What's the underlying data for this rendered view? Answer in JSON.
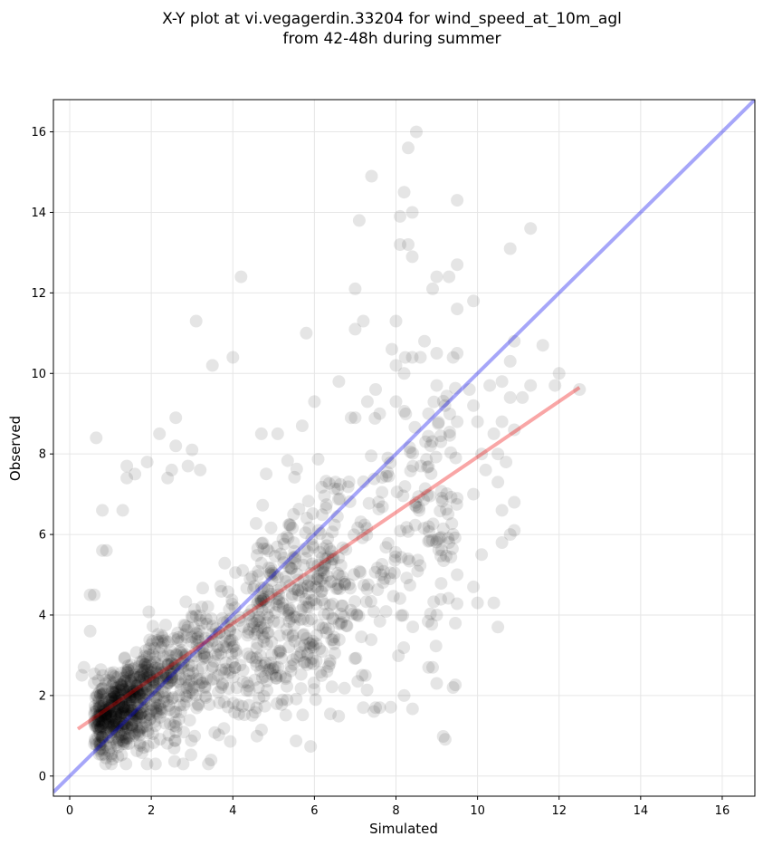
{
  "chart_data": {
    "type": "scatter",
    "title_line1": "X-Y plot at vi.vegagerdin.33204 for wind_speed_at_10m_agl",
    "title_line2": "from 42-48h during summer",
    "xlabel": "Simulated",
    "ylabel": "Observed",
    "xlim": [
      -0.4,
      16.8
    ],
    "ylim": [
      -0.5,
      16.8
    ],
    "xticks": [
      0,
      2,
      4,
      6,
      8,
      10,
      12,
      14,
      16
    ],
    "yticks": [
      0,
      2,
      4,
      6,
      8,
      10,
      12,
      14,
      16
    ],
    "grid": true,
    "colors": {
      "points": "#000000",
      "identity_line": "#0000ee",
      "fit_line": "#ee0000",
      "grid": "#e6e6e6"
    },
    "identity_line": {
      "x": [
        -0.4,
        16.8
      ],
      "y": [
        -0.4,
        16.8
      ]
    },
    "fit_line": {
      "x": [
        0.2,
        12.5
      ],
      "y": [
        1.17,
        9.65
      ]
    },
    "cloud": {
      "count": 1400,
      "description_note_free": true,
      "x_range": [
        0.3,
        12.8
      ],
      "y_range": [
        0.3,
        16.0
      ]
    },
    "points": [
      [
        8.5,
        16.0
      ],
      [
        8.3,
        15.6
      ],
      [
        7.4,
        14.9
      ],
      [
        8.2,
        14.5
      ],
      [
        9.5,
        14.3
      ],
      [
        8.4,
        14.0
      ],
      [
        8.1,
        13.9
      ],
      [
        7.1,
        13.8
      ],
      [
        11.3,
        13.6
      ],
      [
        8.1,
        13.2
      ],
      [
        8.3,
        13.2
      ],
      [
        10.8,
        13.1
      ],
      [
        8.4,
        12.9
      ],
      [
        9.5,
        12.7
      ],
      [
        9.3,
        12.4
      ],
      [
        9.0,
        12.4
      ],
      [
        4.2,
        12.4
      ],
      [
        8.9,
        12.1
      ],
      [
        7.0,
        12.1
      ],
      [
        9.9,
        11.8
      ],
      [
        9.5,
        11.6
      ],
      [
        3.1,
        11.3
      ],
      [
        7.2,
        11.3
      ],
      [
        8.0,
        11.3
      ],
      [
        7.0,
        11.1
      ],
      [
        5.8,
        11.0
      ],
      [
        10.9,
        10.8
      ],
      [
        11.6,
        10.7
      ],
      [
        8.7,
        10.8
      ],
      [
        7.9,
        10.6
      ],
      [
        8.4,
        10.4
      ],
      [
        8.6,
        10.4
      ],
      [
        3.5,
        10.2
      ],
      [
        4.0,
        10.4
      ],
      [
        8.0,
        10.2
      ],
      [
        9.0,
        10.5
      ],
      [
        10.8,
        10.3
      ],
      [
        9.5,
        10.5
      ],
      [
        8.2,
        10.0
      ],
      [
        12.0,
        10.0
      ],
      [
        10.6,
        9.8
      ],
      [
        10.3,
        9.7
      ],
      [
        11.3,
        9.7
      ],
      [
        11.9,
        9.7
      ],
      [
        12.5,
        9.6
      ],
      [
        9.9,
        9.2
      ],
      [
        9.0,
        9.7
      ],
      [
        7.5,
        9.6
      ],
      [
        6.0,
        9.3
      ],
      [
        10.8,
        9.4
      ],
      [
        11.1,
        9.4
      ],
      [
        10.0,
        8.8
      ],
      [
        9.5,
        8.8
      ],
      [
        10.6,
        8.8
      ],
      [
        10.9,
        8.6
      ],
      [
        10.4,
        8.5
      ],
      [
        2.2,
        8.5
      ],
      [
        2.6,
        8.9
      ],
      [
        0.65,
        8.4
      ],
      [
        4.7,
        8.5
      ],
      [
        5.1,
        8.5
      ],
      [
        2.6,
        8.2
      ],
      [
        3.0,
        8.1
      ],
      [
        7.0,
        8.9
      ],
      [
        5.7,
        8.7
      ],
      [
        10.5,
        8.0
      ],
      [
        10.1,
        8.0
      ],
      [
        10.2,
        7.6
      ],
      [
        10.7,
        7.8
      ],
      [
        10.5,
        7.3
      ],
      [
        10.6,
        6.6
      ],
      [
        9.9,
        7.0
      ],
      [
        10.9,
        6.8
      ],
      [
        10.8,
        6.0
      ],
      [
        10.9,
        6.1
      ],
      [
        10.6,
        5.8
      ],
      [
        10.1,
        5.5
      ],
      [
        9.5,
        6.9
      ],
      [
        9.3,
        5.8
      ],
      [
        9.5,
        5.0
      ],
      [
        9.9,
        4.7
      ],
      [
        10.4,
        4.3
      ],
      [
        10.0,
        4.3
      ],
      [
        10.5,
        3.7
      ],
      [
        9.0,
        4.0
      ],
      [
        8.8,
        2.7
      ],
      [
        8.9,
        2.7
      ],
      [
        9.4,
        2.2
      ],
      [
        9.0,
        2.3
      ],
      [
        8.2,
        2.0
      ],
      [
        7.6,
        1.7
      ],
      [
        7.2,
        1.7
      ],
      [
        7.5,
        1.7
      ],
      [
        0.8,
        6.6
      ],
      [
        1.3,
        6.6
      ],
      [
        0.9,
        5.6
      ],
      [
        0.8,
        5.6
      ],
      [
        0.6,
        4.5
      ],
      [
        0.5,
        4.5
      ],
      [
        0.5,
        3.6
      ],
      [
        0.3,
        2.5
      ],
      [
        0.35,
        2.7
      ],
      [
        1.4,
        7.7
      ],
      [
        1.4,
        7.4
      ],
      [
        1.6,
        7.5
      ],
      [
        1.9,
        7.8
      ],
      [
        2.4,
        7.4
      ],
      [
        2.5,
        7.6
      ],
      [
        3.2,
        7.6
      ],
      [
        2.9,
        7.7
      ],
      [
        6.6,
        9.8
      ],
      [
        6.9,
        8.9
      ],
      [
        7.6,
        9.0
      ],
      [
        7.3,
        9.3
      ],
      [
        8.0,
        9.3
      ],
      [
        8.8,
        9.0
      ],
      [
        9.2,
        9.2
      ],
      [
        9.8,
        9.6
      ],
      [
        9.1,
        8.3
      ],
      [
        7.8,
        7.9
      ]
    ]
  }
}
